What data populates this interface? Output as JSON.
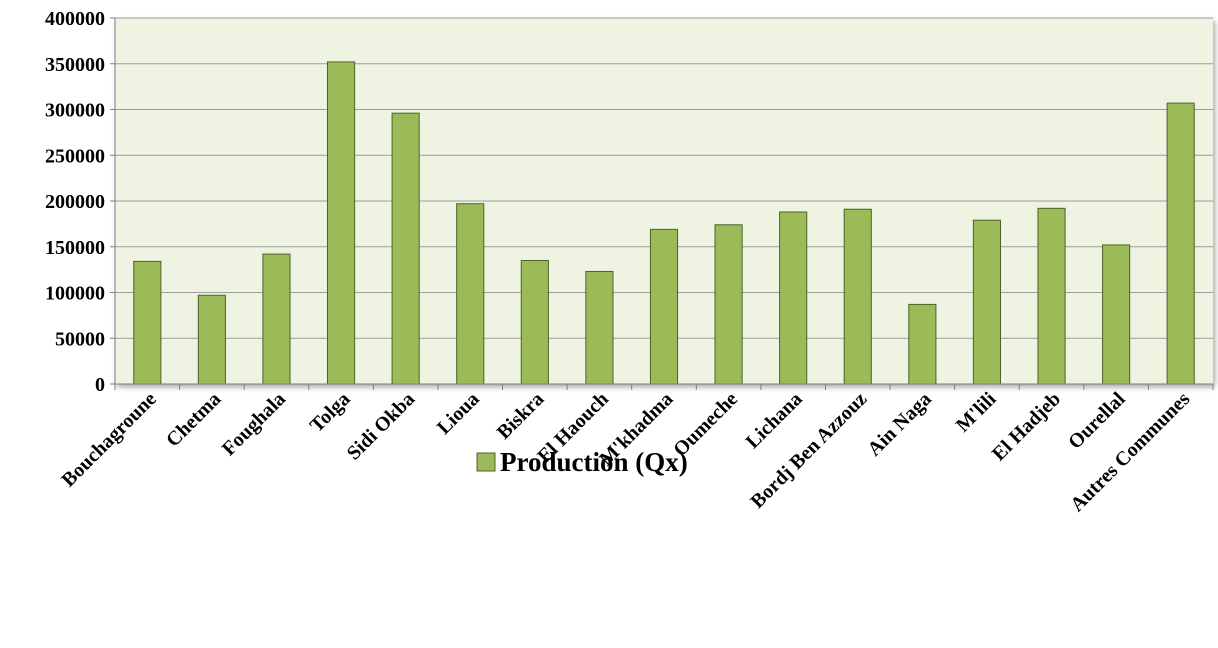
{
  "chart_data": {
    "type": "bar",
    "categories": [
      "Bouchagroune",
      "Chetma",
      "Foughala",
      "Tolga",
      "Sidi Okba",
      "Lioua",
      "Biskra",
      "El Haouch",
      "M'khadma",
      "Oumeche",
      "Lichana",
      "Bordj Ben Azzouz",
      "Ain Naga",
      "M'lili",
      "El Hadjeb",
      "Ourellal",
      "Autres Communes"
    ],
    "series": [
      {
        "name": "Production (Qx)",
        "values": [
          134000,
          97000,
          142000,
          352000,
          296000,
          197000,
          135000,
          123000,
          169000,
          174000,
          188000,
          191000,
          87000,
          179000,
          192000,
          152000,
          307000
        ]
      }
    ],
    "title": "",
    "xlabel": "",
    "ylabel": "",
    "ylim": [
      0,
      400000
    ],
    "yticks": [
      "0",
      "50000",
      "100000",
      "150000",
      "200000",
      "250000",
      "300000",
      "350000",
      "400000"
    ],
    "grid": true,
    "legend_position": "bottom",
    "colors": {
      "bar_fill": "#9bbb59",
      "bar_stroke": "#4f6228",
      "plot_background": "#eef3e2",
      "gridline": "#9c9c9c"
    }
  }
}
